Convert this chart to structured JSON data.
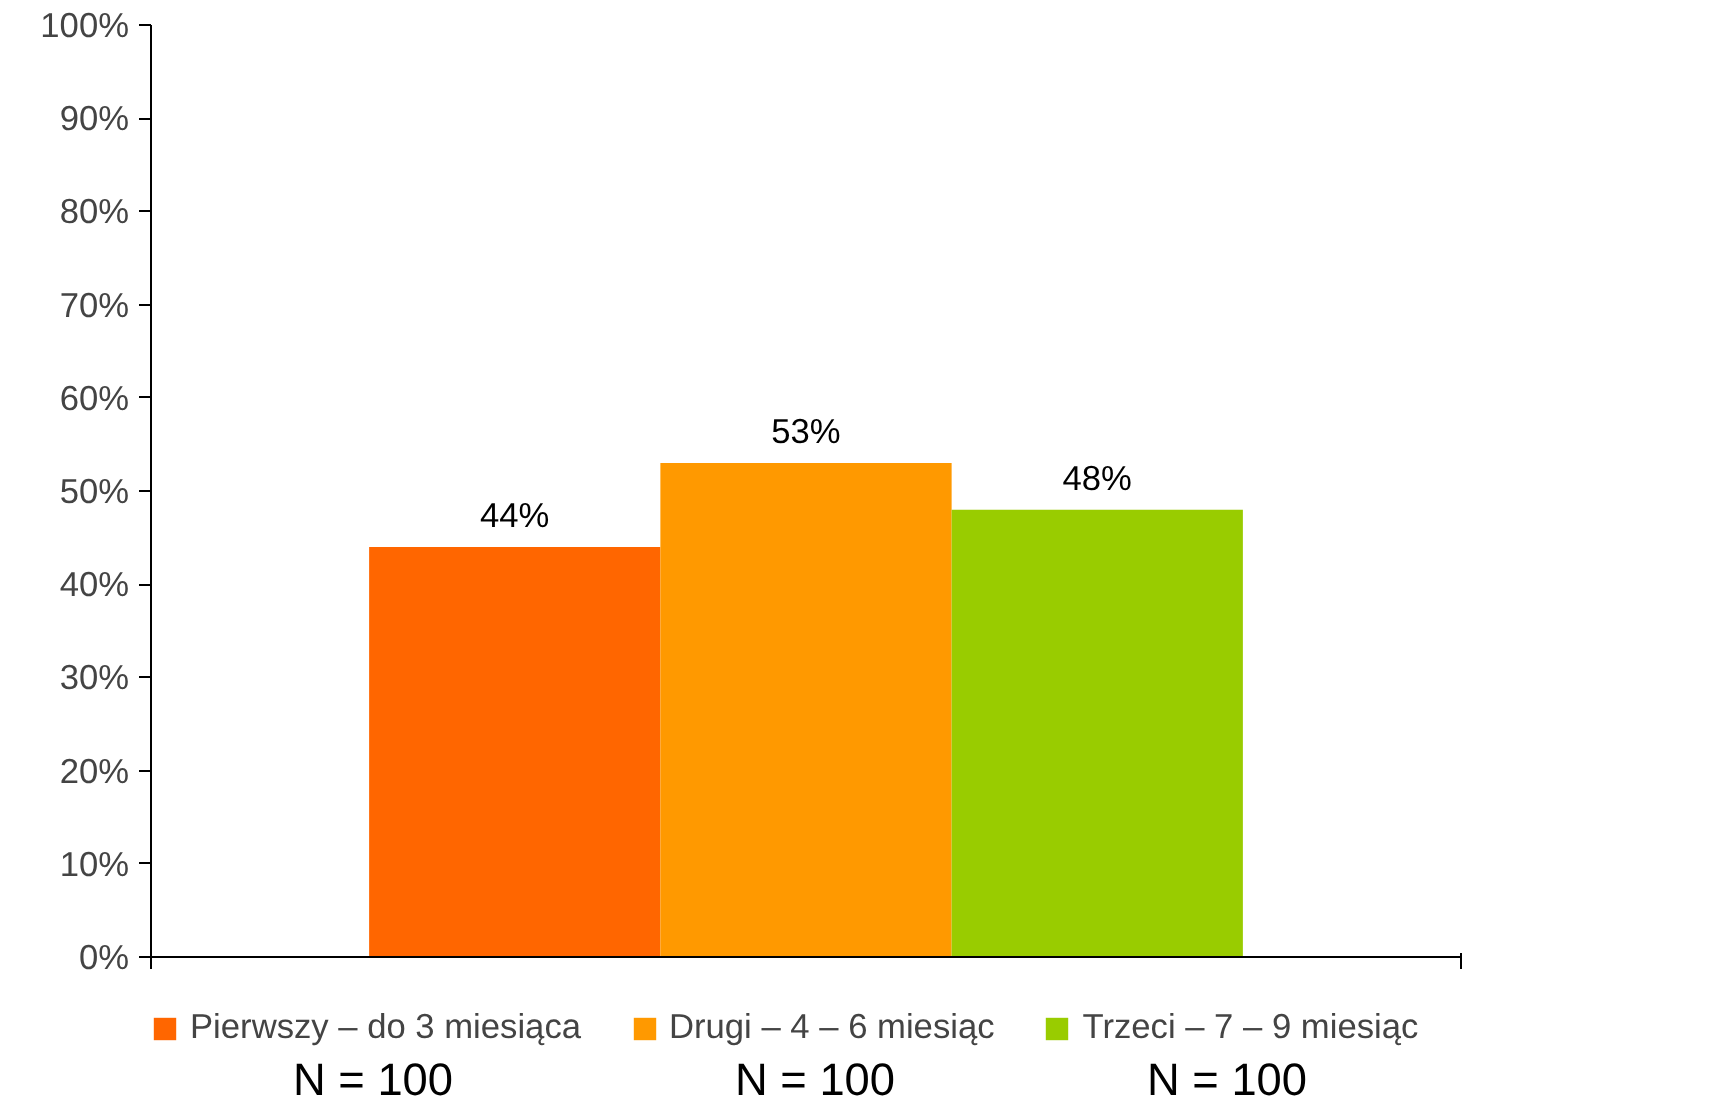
{
  "chart_data": {
    "type": "bar",
    "categories": [
      null
    ],
    "series": [
      {
        "name": "Pierwszy – do 3 miesiąca",
        "color": "#ff6600",
        "values": [
          44
        ],
        "value_labels": [
          "44%"
        ]
      },
      {
        "name": "Drugi – 4 – 6 miesiąc",
        "color": "#ff9900",
        "values": [
          53
        ],
        "value_labels": [
          "53%"
        ]
      },
      {
        "name": "Trzeci – 7 – 9 miesiąc",
        "color": "#99cc00",
        "values": [
          48
        ],
        "value_labels": [
          "48%"
        ]
      }
    ],
    "ylim": [
      0,
      100
    ],
    "yticks": [
      {
        "value": 0,
        "label": "0%"
      },
      {
        "value": 10,
        "label": "10%"
      },
      {
        "value": 20,
        "label": "20%"
      },
      {
        "value": 30,
        "label": "30%"
      },
      {
        "value": 40,
        "label": "40%"
      },
      {
        "value": 50,
        "label": "50%"
      },
      {
        "value": 60,
        "label": "60%"
      },
      {
        "value": 70,
        "label": "70%"
      },
      {
        "value": 80,
        "label": "80%"
      },
      {
        "value": 90,
        "label": "90%"
      },
      {
        "value": 100,
        "label": "100%"
      }
    ],
    "grid": false,
    "legend": "bottom",
    "annotations": [
      "N = 100",
      "N = 100",
      "N = 100"
    ]
  }
}
